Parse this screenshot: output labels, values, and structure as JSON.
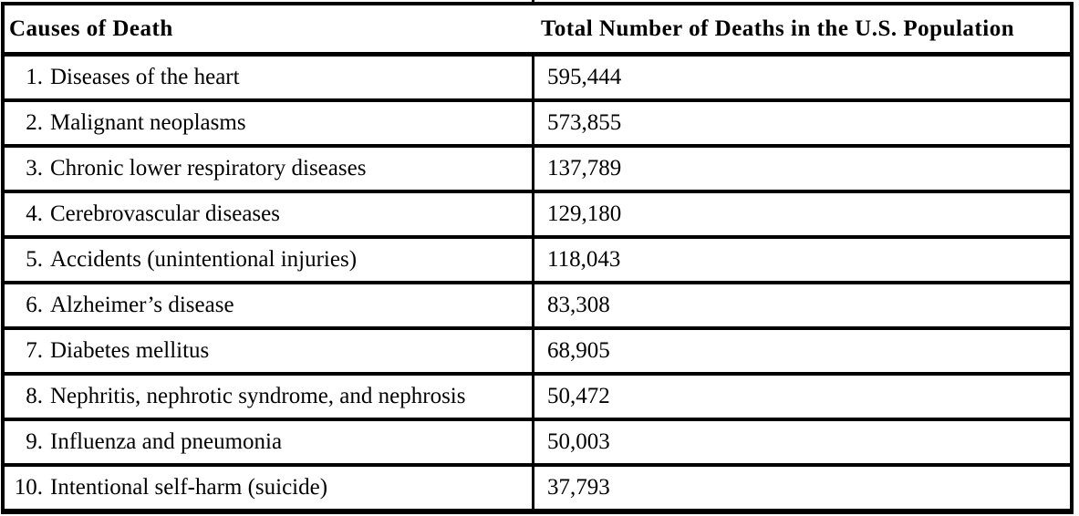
{
  "page": {
    "background_color": "#ffffff",
    "text_color": "#000000",
    "border_color": "#000000"
  },
  "table": {
    "columns": [
      {
        "key": "cause",
        "label": "Causes of Death"
      },
      {
        "key": "total",
        "label": "Total Number of Deaths in the U.S. Population"
      }
    ],
    "rows": [
      {
        "num": "1.",
        "cause": "Diseases of the heart",
        "total": "595,444"
      },
      {
        "num": "2.",
        "cause": "Malignant neoplasms",
        "total": "573,855"
      },
      {
        "num": "3.",
        "cause": "Chronic lower respiratory diseases",
        "total": "137,789"
      },
      {
        "num": "4.",
        "cause": "Cerebrovascular diseases",
        "total": "129,180"
      },
      {
        "num": "5.",
        "cause": "Accidents (unintentional injuries)",
        "total": "118,043"
      },
      {
        "num": "6.",
        "cause": "Alzheimer’s disease",
        "total": "83,308"
      },
      {
        "num": "7.",
        "cause": "Diabetes mellitus",
        "total": "68,905"
      },
      {
        "num": "8.",
        "cause": "Nephritis, nephrotic syndrome, and nephrosis",
        "total": "50,472"
      },
      {
        "num": "9.",
        "cause": "Influenza and pneumonia",
        "total": "50,003"
      },
      {
        "num": "10.",
        "cause": "Intentional self-harm (suicide)",
        "total": "37,793"
      }
    ]
  },
  "chart_data": {
    "type": "table",
    "columns": [
      "Causes of Death",
      "Total Number of Deaths in the U.S. Population"
    ],
    "categories": [
      "Diseases of the heart",
      "Malignant neoplasms",
      "Chronic lower respiratory diseases",
      "Cerebrovascular diseases",
      "Accidents (unintentional injuries)",
      "Alzheimer’s disease",
      "Diabetes mellitus",
      "Nephritis, nephrotic syndrome, and nephrosis",
      "Influenza and pneumonia",
      "Intentional self-harm (suicide)"
    ],
    "values": [
      595444,
      573855,
      137789,
      129180,
      118043,
      83308,
      68905,
      50472,
      50003,
      37793
    ]
  }
}
